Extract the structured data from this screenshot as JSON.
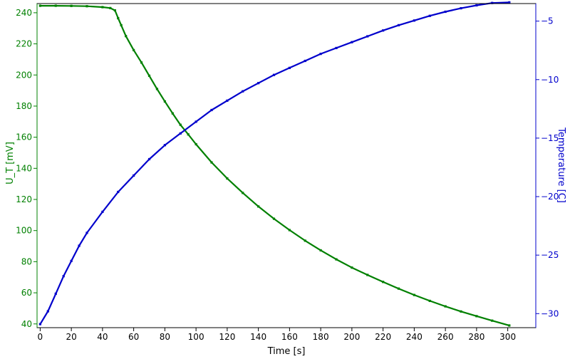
{
  "chart_data": {
    "type": "scatter",
    "title": "",
    "xlabel": "Time [s]",
    "ylabel_left": "U_T [mV]",
    "ylabel_right": "Temperature [C]",
    "xlim": [
      -2,
      318
    ],
    "ylim_left": [
      37.6,
      245.9
    ],
    "ylim_right": [
      -31.2,
      -3.5
    ],
    "x_ticks": [
      0,
      20,
      40,
      60,
      80,
      100,
      120,
      140,
      160,
      180,
      200,
      220,
      240,
      260,
      280,
      300
    ],
    "y_ticks_left": [
      40,
      60,
      80,
      100,
      120,
      140,
      160,
      180,
      200,
      220,
      240
    ],
    "y_ticks_right": [
      -30,
      -25,
      -20,
      -15,
      -10,
      -5
    ],
    "grid": false,
    "colors": {
      "left_axis": "#008000",
      "right_axis": "#0000cc",
      "frame": "#000000"
    },
    "series": [
      {
        "axis": "left",
        "color": "#008000",
        "x": [
          0,
          10,
          20,
          30,
          40,
          45,
          48,
          50,
          52,
          55,
          60,
          65,
          70,
          75,
          80,
          85,
          90,
          95,
          100,
          110,
          120,
          130,
          140,
          150,
          160,
          170,
          180,
          190,
          200,
          210,
          220,
          230,
          240,
          250,
          260,
          270,
          280,
          290,
          301
        ],
        "y": [
          244.5,
          244.5,
          244.4,
          244.2,
          243.6,
          243.0,
          241.5,
          236.5,
          232.0,
          225.0,
          216.0,
          208.0,
          199.5,
          191.0,
          183.0,
          175.3,
          168.0,
          161.8,
          155.5,
          143.8,
          133.5,
          124.2,
          115.5,
          107.6,
          100.3,
          93.5,
          87.3,
          81.5,
          76.2,
          71.5,
          67.0,
          62.7,
          58.6,
          54.8,
          51.3,
          48.0,
          45.0,
          42.1,
          39.0
        ]
      },
      {
        "axis": "right",
        "color": "#0000cc",
        "x": [
          0,
          5,
          10,
          15,
          20,
          25,
          30,
          40,
          50,
          60,
          70,
          80,
          90,
          100,
          110,
          120,
          130,
          140,
          150,
          160,
          170,
          180,
          190,
          200,
          210,
          220,
          230,
          240,
          250,
          260,
          270,
          280,
          290,
          301
        ],
        "y": [
          -30.9,
          -29.8,
          -28.3,
          -26.8,
          -25.5,
          -24.2,
          -23.1,
          -21.3,
          -19.6,
          -18.2,
          -16.8,
          -15.6,
          -14.6,
          -13.6,
          -12.6,
          -11.8,
          -11.0,
          -10.3,
          -9.6,
          -9.0,
          -8.4,
          -7.8,
          -7.3,
          -6.8,
          -6.3,
          -5.8,
          -5.35,
          -4.95,
          -4.55,
          -4.2,
          -3.9,
          -3.65,
          -3.45,
          -3.4
        ]
      }
    ]
  }
}
